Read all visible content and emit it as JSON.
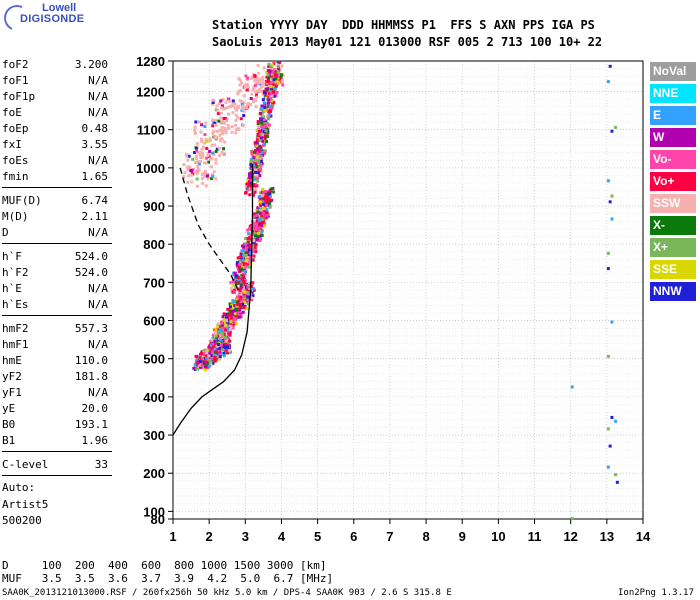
{
  "logo": {
    "line1": "Lowell",
    "line2": "DIGISONDE"
  },
  "header": {
    "row1": "Station YYYY DAY  DDD HHMMSS P1  FFS S AXN PPS IGA PS",
    "row2": "SaoLuis 2013 May01 121 013000 RSF 005 2 713 100 10+ 22"
  },
  "params": [
    {
      "k": "foF2",
      "v": "3.200"
    },
    {
      "k": "foF1",
      "v": "N/A"
    },
    {
      "k": "foF1p",
      "v": "N/A"
    },
    {
      "k": "foE",
      "v": "N/A"
    },
    {
      "k": "foEp",
      "v": "0.48"
    },
    {
      "k": "fxI",
      "v": "3.55"
    },
    {
      "k": "foEs",
      "v": "N/A"
    },
    {
      "k": "fmin",
      "v": "1.65"
    },
    {
      "k": "MUF(D)",
      "v": "6.74"
    },
    {
      "k": "M(D)",
      "v": "2.11"
    },
    {
      "k": "D",
      "v": "N/A"
    },
    {
      "k": "h`F",
      "v": "524.0"
    },
    {
      "k": "h`F2",
      "v": "524.0"
    },
    {
      "k": "h`E",
      "v": "N/A"
    },
    {
      "k": "h`Es",
      "v": "N/A"
    },
    {
      "k": "hmF2",
      "v": "557.3"
    },
    {
      "k": "hmF1",
      "v": "N/A"
    },
    {
      "k": "hmE",
      "v": "110.0"
    },
    {
      "k": "yF2",
      "v": "181.8"
    },
    {
      "k": "yF1",
      "v": "N/A"
    },
    {
      "k": "yE",
      "v": "20.0"
    },
    {
      "k": "B0",
      "v": "193.1"
    },
    {
      "k": "B1",
      "v": "1.96"
    },
    {
      "k": "C-level",
      "v": "33"
    }
  ],
  "auto": {
    "l1": "Auto:",
    "l2": "Artist5",
    "l3": "500200"
  },
  "footer": {
    "d_row": "D     100  200  400  600  800 1000 1500 3000 [km]",
    "muf_row": "MUF   3.5  3.5  3.6  3.7  3.9  4.2  5.0  6.7 [MHz]",
    "file_row": "SAA0K_2013121013000.RSF / 260fx256h 50 kHz 5.0 km / DPS-4 SAA0K 903 / 2.6 S 315.8 E",
    "version": "Ion2Png 1.3.17"
  },
  "legend": [
    {
      "label": "NoVal",
      "color": "#9e9e9e"
    },
    {
      "label": "NNE",
      "color": "#00e5ff"
    },
    {
      "label": "E",
      "color": "#33a1ff"
    },
    {
      "label": "W",
      "color": "#b000b0"
    },
    {
      "label": "Vo-",
      "color": "#ff44aa"
    },
    {
      "label": "Vo+",
      "color": "#ff0044"
    },
    {
      "label": "SSW",
      "color": "#f7b0b0"
    },
    {
      "label": "X-",
      "color": "#0a7a0a"
    },
    {
      "label": "X+",
      "color": "#79b75a"
    },
    {
      "label": "SSE",
      "color": "#d8d800"
    },
    {
      "label": "NNW",
      "color": "#2020d8"
    }
  ],
  "chart_data": {
    "type": "scatter",
    "xlim": [
      1,
      14
    ],
    "ylim": [
      80,
      1280
    ],
    "x_ticks": [
      1,
      2,
      3,
      4,
      5,
      6,
      7,
      8,
      9,
      10,
      11,
      12,
      13,
      14
    ],
    "y_ticks": [
      80,
      100,
      200,
      300,
      400,
      500,
      600,
      700,
      800,
      900,
      1000,
      1100,
      1200,
      1280
    ],
    "y_tick_labels": [
      "80",
      "100",
      "200",
      "300",
      "400",
      "500",
      "600",
      "700",
      "800",
      "900",
      "1000",
      "1100",
      "1200",
      "1280"
    ],
    "grid": true,
    "profile_solid": [
      [
        1,
        300
      ],
      [
        1.2,
        330
      ],
      [
        1.5,
        370
      ],
      [
        1.8,
        400
      ],
      [
        2.1,
        420
      ],
      [
        2.4,
        440
      ],
      [
        2.7,
        470
      ],
      [
        2.9,
        510
      ],
      [
        3.05,
        570
      ],
      [
        3.15,
        680
      ],
      [
        3.2,
        880
      ],
      [
        3.2,
        1010
      ]
    ],
    "profile_dashed": [
      [
        1.2,
        1000
      ],
      [
        1.4,
        930
      ],
      [
        1.7,
        850
      ],
      [
        2.0,
        800
      ],
      [
        2.3,
        760
      ],
      [
        2.6,
        720
      ],
      [
        2.85,
        670
      ]
    ],
    "echo_traces": [
      {
        "x0": 1.7,
        "x1": 2.4,
        "h0": 490,
        "h1": 540
      },
      {
        "x0": 2.1,
        "x1": 3.1,
        "h0": 540,
        "h1": 690
      },
      {
        "x0": 2.7,
        "x1": 3.6,
        "h0": 690,
        "h1": 940
      },
      {
        "x0": 3.1,
        "x1": 3.8,
        "h0": 940,
        "h1": 1270
      }
    ],
    "ssw_cloud": [
      [
        1.7,
        1000
      ],
      [
        2.0,
        1080
      ],
      [
        2.5,
        1140
      ],
      [
        3.2,
        1200
      ],
      [
        3.6,
        1240
      ]
    ],
    "isolated_points": [
      {
        "x": 13.05,
        "y": 1270
      },
      {
        "x": 13.0,
        "y": 1230
      },
      {
        "x": 13.2,
        "y": 1110
      },
      {
        "x": 13.1,
        "y": 1100
      },
      {
        "x": 13.0,
        "y": 970
      },
      {
        "x": 13.1,
        "y": 930
      },
      {
        "x": 13.05,
        "y": 915
      },
      {
        "x": 13.1,
        "y": 870
      },
      {
        "x": 13.0,
        "y": 780
      },
      {
        "x": 13.0,
        "y": 740
      },
      {
        "x": 13.1,
        "y": 600
      },
      {
        "x": 13.0,
        "y": 510
      },
      {
        "x": 13.1,
        "y": 350
      },
      {
        "x": 13.2,
        "y": 340
      },
      {
        "x": 13.0,
        "y": 320
      },
      {
        "x": 13.05,
        "y": 275
      },
      {
        "x": 13.0,
        "y": 220
      },
      {
        "x": 13.2,
        "y": 200
      },
      {
        "x": 13.25,
        "y": 180
      },
      {
        "x": 12.0,
        "y": 430
      },
      {
        "x": 12.0,
        "y": 85
      }
    ]
  }
}
